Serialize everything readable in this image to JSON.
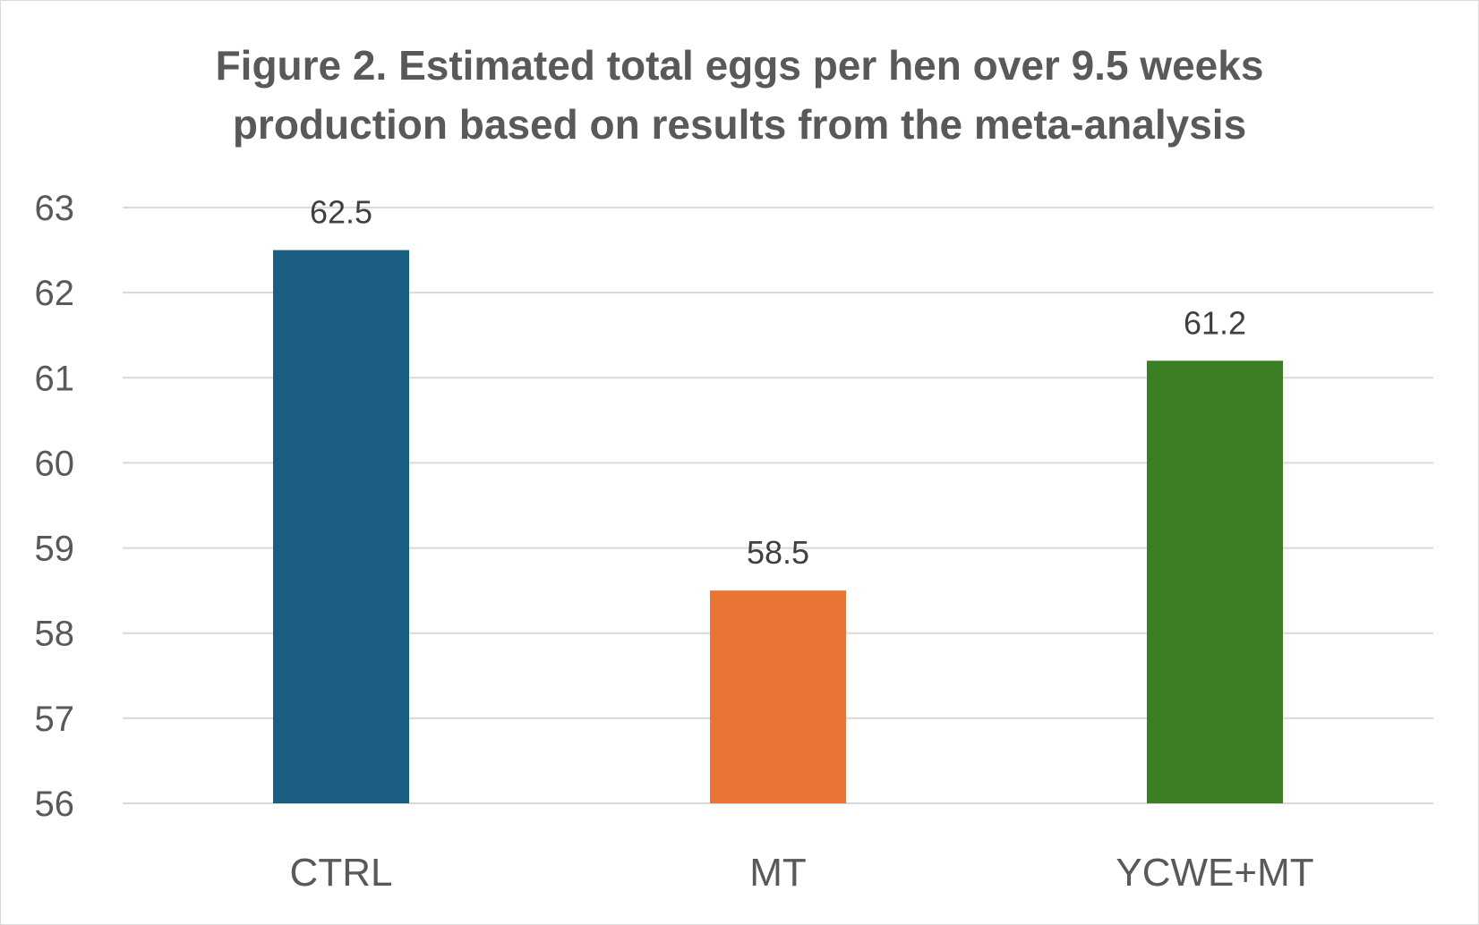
{
  "chart_data": {
    "type": "bar",
    "title": "Figure 2. Estimated total eggs per hen over 9.5 weeks production based on results from the meta-analysis",
    "title_lines": [
      "Figure 2. Estimated total eggs per hen over 9.5 weeks",
      "production based on results from the meta-analysis"
    ],
    "categories": [
      "CTRL",
      "MT",
      "YCWE+MT"
    ],
    "values": [
      62.5,
      58.5,
      61.2
    ],
    "data_labels": [
      "62.5",
      "58.5",
      "61.2"
    ],
    "bar_colors": [
      "#1a5f82",
      "#e97434",
      "#3c7e24"
    ],
    "xlabel": "",
    "ylabel": "",
    "ylim": [
      56,
      63
    ],
    "yticks": [
      56,
      57,
      58,
      59,
      60,
      61,
      62,
      63
    ],
    "grid": true,
    "gridline_color": "#d9d9d9",
    "legend": "none"
  }
}
